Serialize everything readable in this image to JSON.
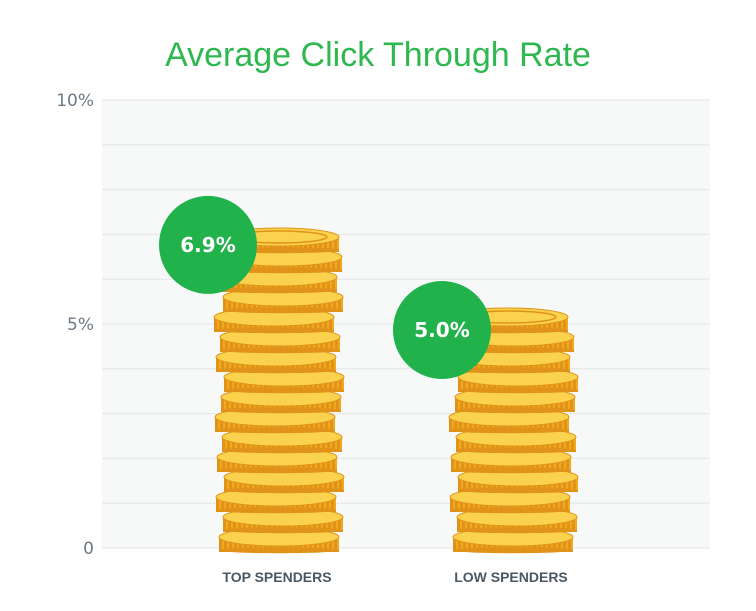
{
  "colors": {
    "title": "#2fb84f",
    "badge": "#22b24c",
    "coin_face": "#f7b21f",
    "coin_dark": "#e09318",
    "coin_top": "#fbd24d",
    "grid": "#e3e6e8",
    "plot_bg": "#f7f8f8"
  },
  "chart_data": {
    "type": "bar",
    "title": "Average Click Through Rate",
    "xlabel": "",
    "ylabel": "",
    "ylim": [
      0,
      10
    ],
    "grid": true,
    "y_ticks": [
      {
        "value": 0,
        "label": "0"
      },
      {
        "value": 5,
        "label": "5%"
      },
      {
        "value": 10,
        "label": "10%"
      }
    ],
    "categories": [
      "TOP SPENDERS",
      "LOW SPENDERS"
    ],
    "values": [
      6.9,
      5.0
    ],
    "data_labels": [
      "6.9%",
      "5.0%"
    ],
    "mark_style": "coin stacks"
  }
}
